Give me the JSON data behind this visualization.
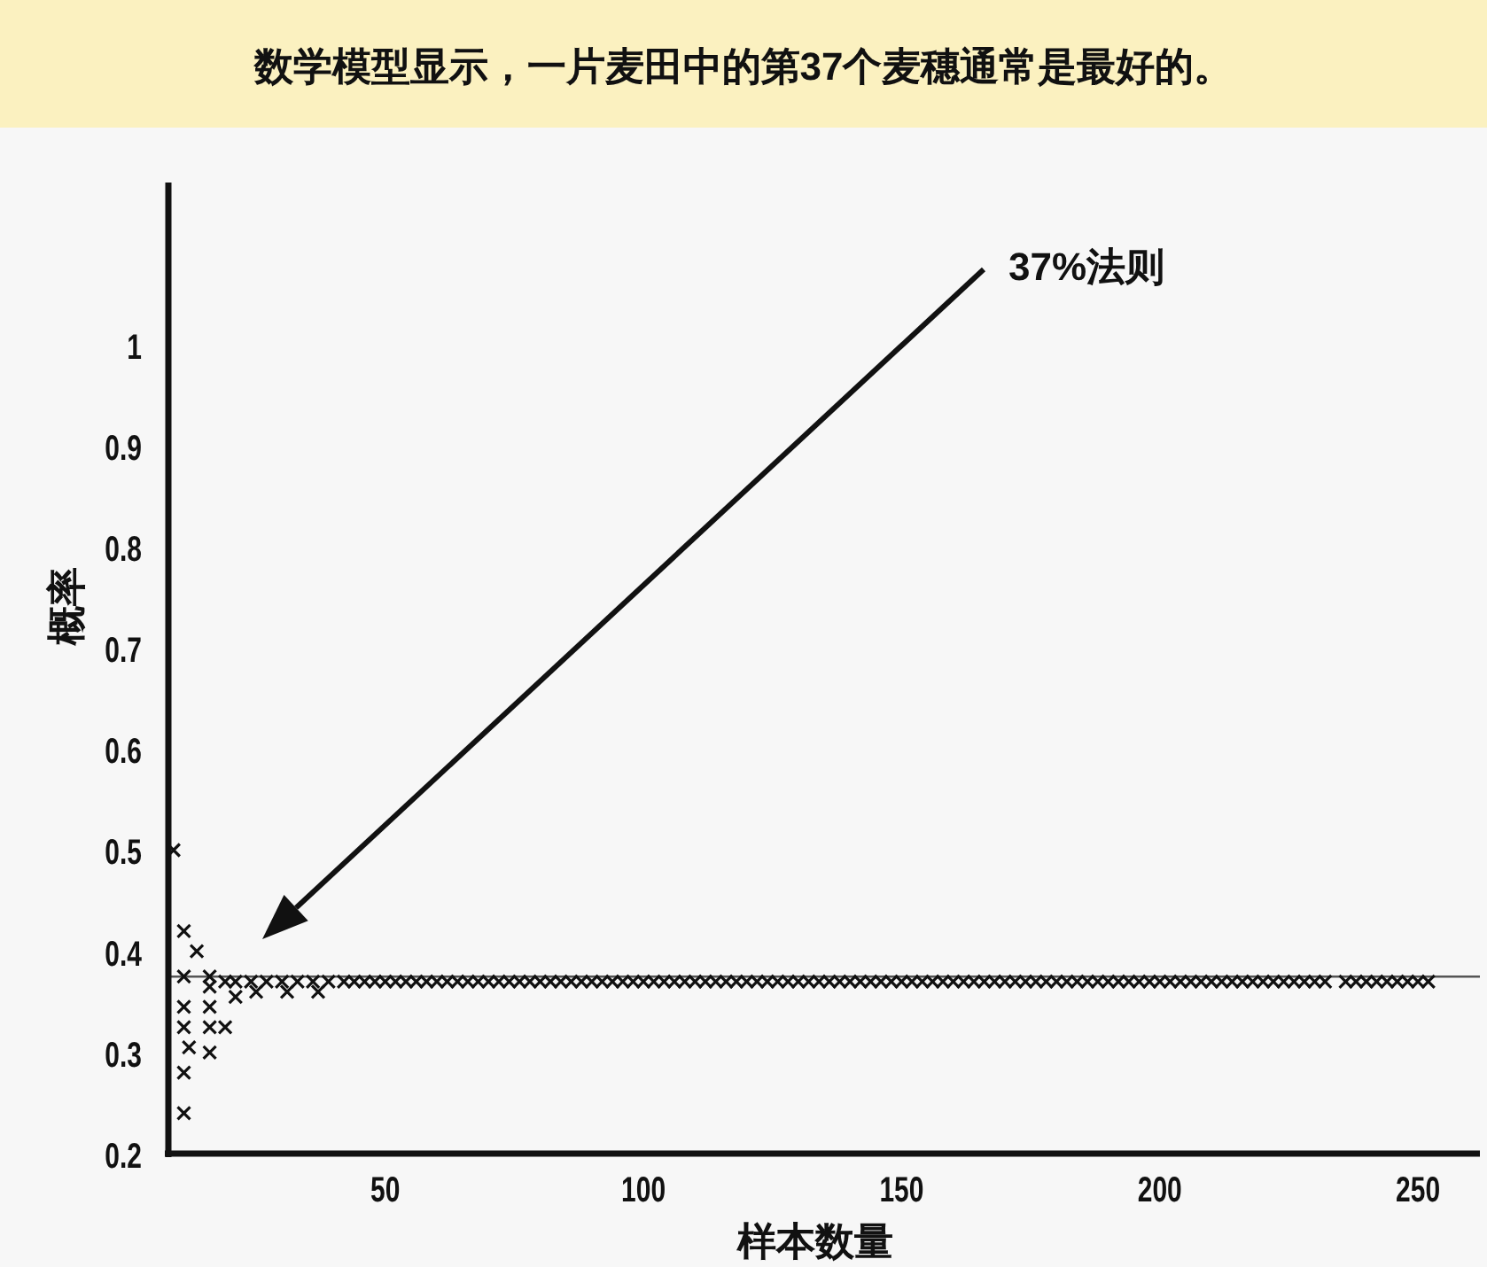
{
  "chart_data": {
    "type": "scatter",
    "title": "数学模型显示，一片麦田中的第37个麦穗通常是最好的。",
    "xlabel": "样本数量",
    "ylabel": "概率",
    "xlim": [
      8,
      262
    ],
    "ylim": [
      0.2,
      1.16
    ],
    "xticks": [
      50,
      100,
      150,
      200,
      250
    ],
    "yticks": [
      0.2,
      0.3,
      0.4,
      0.5,
      0.6,
      0.7,
      0.8,
      0.9,
      1
    ],
    "marker": "cross",
    "ref_lines": [
      {
        "axis": "y",
        "value": 0.375,
        "color": "#555555"
      }
    ],
    "annotations": [
      "37%法则"
    ],
    "series": [
      {
        "color": "#111111",
        "x": [
          9,
          11,
          11,
          11,
          11,
          11,
          11,
          12,
          13.5,
          16,
          16,
          16,
          16,
          16,
          19,
          19,
          21,
          21,
          24,
          25,
          27,
          30,
          31,
          33,
          36,
          37,
          39,
          42,
          44,
          46,
          48,
          50,
          52,
          54,
          56,
          58,
          60,
          62,
          64,
          66,
          68,
          70,
          72,
          74,
          76,
          78,
          80,
          82,
          84,
          86,
          88,
          90,
          92,
          94,
          96,
          98,
          100,
          102,
          104,
          106,
          108,
          110,
          112,
          114,
          116,
          118,
          120,
          122,
          124,
          126,
          128,
          130,
          132,
          134,
          136,
          138,
          140,
          142,
          144,
          146,
          148,
          150,
          152,
          154,
          156,
          158,
          160,
          162,
          164,
          166,
          168,
          170,
          172,
          174,
          176,
          178,
          180,
          182,
          184,
          186,
          188,
          190,
          192,
          194,
          196,
          198,
          200,
          202,
          204,
          206,
          208,
          210,
          212,
          214,
          216,
          218,
          220,
          222,
          224,
          226,
          228,
          230,
          232,
          236,
          238,
          240,
          242,
          244,
          246,
          248,
          250,
          252
        ],
        "values": [
          0.5,
          0.42,
          0.375,
          0.345,
          0.325,
          0.28,
          0.24,
          0.305,
          0.4,
          0.375,
          0.365,
          0.345,
          0.325,
          0.3,
          0.37,
          0.325,
          0.355,
          0.37,
          0.37,
          0.36,
          0.37,
          0.37,
          0.36,
          0.37,
          0.37,
          0.36,
          0.37,
          0.37,
          0.37,
          0.37,
          0.37,
          0.37,
          0.37,
          0.37,
          0.37,
          0.37,
          0.37,
          0.37,
          0.37,
          0.37,
          0.37,
          0.37,
          0.37,
          0.37,
          0.37,
          0.37,
          0.37,
          0.37,
          0.37,
          0.37,
          0.37,
          0.37,
          0.37,
          0.37,
          0.37,
          0.37,
          0.37,
          0.37,
          0.37,
          0.37,
          0.37,
          0.37,
          0.37,
          0.37,
          0.37,
          0.37,
          0.37,
          0.37,
          0.37,
          0.37,
          0.37,
          0.37,
          0.37,
          0.37,
          0.37,
          0.37,
          0.37,
          0.37,
          0.37,
          0.37,
          0.37,
          0.37,
          0.37,
          0.37,
          0.37,
          0.37,
          0.37,
          0.37,
          0.37,
          0.37,
          0.37,
          0.37,
          0.37,
          0.37,
          0.37,
          0.37,
          0.37,
          0.37,
          0.37,
          0.37,
          0.37,
          0.37,
          0.37,
          0.37,
          0.37,
          0.37,
          0.37,
          0.37,
          0.37,
          0.37,
          0.37,
          0.37,
          0.37,
          0.37,
          0.37,
          0.37,
          0.37,
          0.37,
          0.37,
          0.37,
          0.37,
          0.37,
          0.37,
          0.37,
          0.37,
          0.37,
          0.37,
          0.37,
          0.37,
          0.37,
          0.37,
          0.37
        ]
      }
    ]
  }
}
